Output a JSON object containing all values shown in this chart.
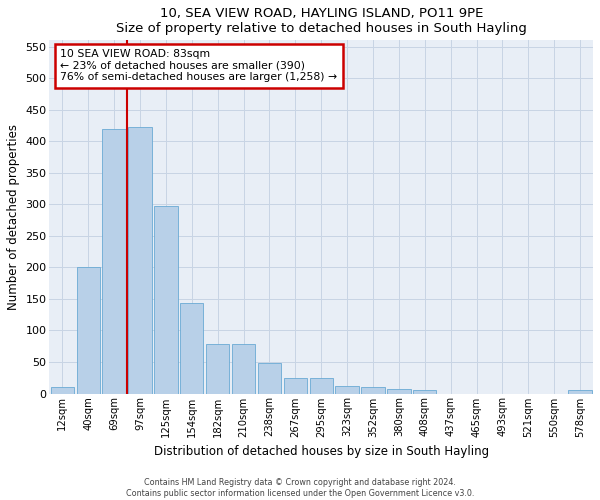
{
  "title": "10, SEA VIEW ROAD, HAYLING ISLAND, PO11 9PE",
  "subtitle": "Size of property relative to detached houses in South Hayling",
  "xlabel": "Distribution of detached houses by size in South Hayling",
  "ylabel": "Number of detached properties",
  "bar_labels": [
    "12sqm",
    "40sqm",
    "69sqm",
    "97sqm",
    "125sqm",
    "154sqm",
    "182sqm",
    "210sqm",
    "238sqm",
    "267sqm",
    "295sqm",
    "323sqm",
    "352sqm",
    "380sqm",
    "408sqm",
    "437sqm",
    "465sqm",
    "493sqm",
    "521sqm",
    "550sqm",
    "578sqm"
  ],
  "bar_values": [
    10,
    200,
    420,
    422,
    298,
    143,
    78,
    78,
    48,
    25,
    25,
    12,
    10,
    8,
    5,
    0,
    0,
    0,
    0,
    0,
    5
  ],
  "bar_color": "#b8d0e8",
  "bar_edge_color": "#6aaad4",
  "grid_color": "#c8d4e4",
  "background_color": "#e8eef6",
  "annotation_line1": "10 SEA VIEW ROAD: 83sqm",
  "annotation_line2": "← 23% of detached houses are smaller (390)",
  "annotation_line3": "76% of semi-detached houses are larger (1,258) →",
  "red_line_color": "#cc0000",
  "annotation_box_color": "#ffffff",
  "annotation_box_edge": "#cc0000",
  "footer_line1": "Contains HM Land Registry data © Crown copyright and database right 2024.",
  "footer_line2": "Contains public sector information licensed under the Open Government Licence v3.0.",
  "ylim": [
    0,
    560
  ],
  "yticks": [
    0,
    50,
    100,
    150,
    200,
    250,
    300,
    350,
    400,
    450,
    500,
    550
  ]
}
